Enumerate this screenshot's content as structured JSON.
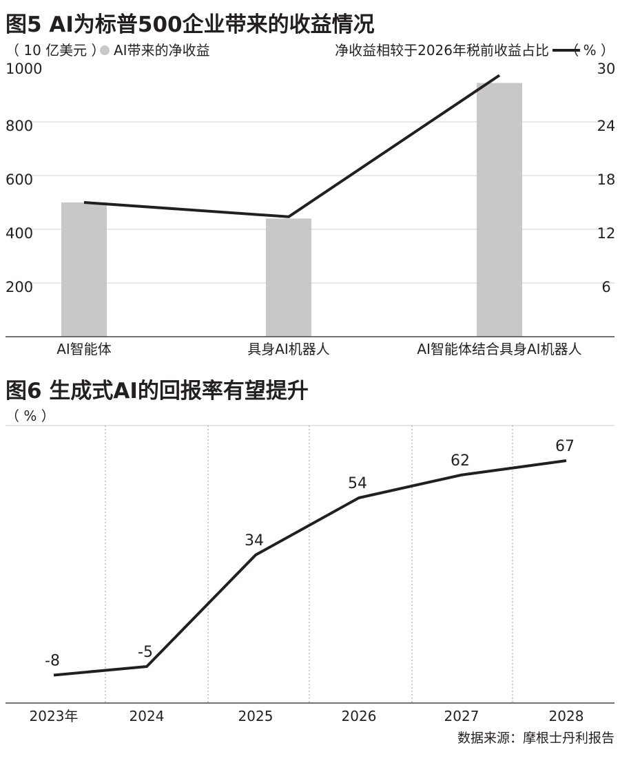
{
  "colors": {
    "bar": "#c8c8c8",
    "line": "#231f20",
    "grid": "#cfcfcf",
    "axis": "#444444",
    "text": "#231f20"
  },
  "source": "数据来源：摩根士丹利报告",
  "chart_data": [
    {
      "type": "bar",
      "title": "图5 AI为标普500企业带来的收益情况",
      "left_unit": "（ 10 亿美元 ）",
      "bar_legend": "AI带来的净收益",
      "line_legend": "净收益相较于2026年税前收益占比",
      "right_unit": "（ % ）",
      "categories": [
        "AI智能体",
        "具身AI机器人",
        "AI智能体结合具身AI机器人"
      ],
      "series": [
        {
          "name": "AI带来的净收益",
          "type": "bar",
          "axis": "left",
          "values": [
            500,
            440,
            945
          ]
        },
        {
          "name": "净收益相较于2026年税前收益占比",
          "type": "line",
          "axis": "right",
          "values": [
            15.0,
            13.4,
            29.2
          ]
        }
      ],
      "ylim": [
        0,
        1000
      ],
      "yticks": [
        200,
        400,
        600,
        800,
        1000
      ],
      "y2lim": [
        0,
        30
      ],
      "y2ticks": [
        6,
        12,
        18,
        24,
        30
      ],
      "grid": true
    },
    {
      "type": "line",
      "title": "图6 生成式AI的回报率有望提升",
      "unit": "（ % ）",
      "categories": [
        "2023年",
        "2024",
        "2025",
        "2026",
        "2027",
        "2028"
      ],
      "series": [
        {
          "values": [
            -8,
            -5,
            34,
            54,
            62,
            67
          ],
          "labels": [
            "-8",
            "-5",
            "34",
            "54",
            "62",
            "67"
          ]
        }
      ],
      "ylim": [
        -20,
        80
      ],
      "grid": "vertical-dotted"
    }
  ]
}
